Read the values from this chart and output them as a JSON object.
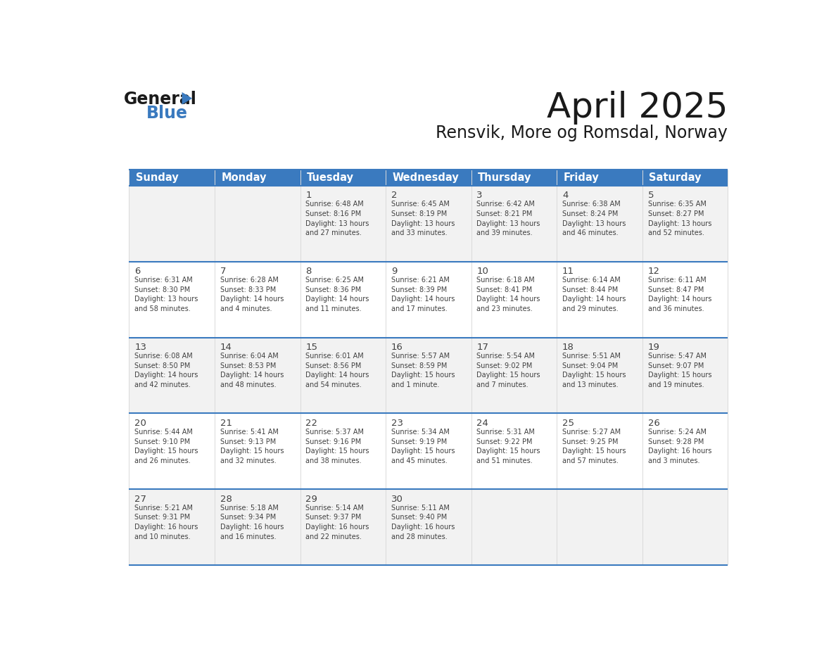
{
  "title": "April 2025",
  "subtitle": "Rensvik, More og Romsdal, Norway",
  "header_bg_color": "#3a7abf",
  "header_text_color": "#ffffff",
  "day_headers": [
    "Sunday",
    "Monday",
    "Tuesday",
    "Wednesday",
    "Thursday",
    "Friday",
    "Saturday"
  ],
  "title_color": "#1a1a1a",
  "subtitle_color": "#1a1a1a",
  "text_color": "#404040",
  "line_color": "#3a7abf",
  "cell_bg_even": "#f2f2f2",
  "cell_bg_odd": "#ffffff",
  "weeks": [
    [
      {
        "day": "",
        "info": ""
      },
      {
        "day": "",
        "info": ""
      },
      {
        "day": "1",
        "info": "Sunrise: 6:48 AM\nSunset: 8:16 PM\nDaylight: 13 hours\nand 27 minutes."
      },
      {
        "day": "2",
        "info": "Sunrise: 6:45 AM\nSunset: 8:19 PM\nDaylight: 13 hours\nand 33 minutes."
      },
      {
        "day": "3",
        "info": "Sunrise: 6:42 AM\nSunset: 8:21 PM\nDaylight: 13 hours\nand 39 minutes."
      },
      {
        "day": "4",
        "info": "Sunrise: 6:38 AM\nSunset: 8:24 PM\nDaylight: 13 hours\nand 46 minutes."
      },
      {
        "day": "5",
        "info": "Sunrise: 6:35 AM\nSunset: 8:27 PM\nDaylight: 13 hours\nand 52 minutes."
      }
    ],
    [
      {
        "day": "6",
        "info": "Sunrise: 6:31 AM\nSunset: 8:30 PM\nDaylight: 13 hours\nand 58 minutes."
      },
      {
        "day": "7",
        "info": "Sunrise: 6:28 AM\nSunset: 8:33 PM\nDaylight: 14 hours\nand 4 minutes."
      },
      {
        "day": "8",
        "info": "Sunrise: 6:25 AM\nSunset: 8:36 PM\nDaylight: 14 hours\nand 11 minutes."
      },
      {
        "day": "9",
        "info": "Sunrise: 6:21 AM\nSunset: 8:39 PM\nDaylight: 14 hours\nand 17 minutes."
      },
      {
        "day": "10",
        "info": "Sunrise: 6:18 AM\nSunset: 8:41 PM\nDaylight: 14 hours\nand 23 minutes."
      },
      {
        "day": "11",
        "info": "Sunrise: 6:14 AM\nSunset: 8:44 PM\nDaylight: 14 hours\nand 29 minutes."
      },
      {
        "day": "12",
        "info": "Sunrise: 6:11 AM\nSunset: 8:47 PM\nDaylight: 14 hours\nand 36 minutes."
      }
    ],
    [
      {
        "day": "13",
        "info": "Sunrise: 6:08 AM\nSunset: 8:50 PM\nDaylight: 14 hours\nand 42 minutes."
      },
      {
        "day": "14",
        "info": "Sunrise: 6:04 AM\nSunset: 8:53 PM\nDaylight: 14 hours\nand 48 minutes."
      },
      {
        "day": "15",
        "info": "Sunrise: 6:01 AM\nSunset: 8:56 PM\nDaylight: 14 hours\nand 54 minutes."
      },
      {
        "day": "16",
        "info": "Sunrise: 5:57 AM\nSunset: 8:59 PM\nDaylight: 15 hours\nand 1 minute."
      },
      {
        "day": "17",
        "info": "Sunrise: 5:54 AM\nSunset: 9:02 PM\nDaylight: 15 hours\nand 7 minutes."
      },
      {
        "day": "18",
        "info": "Sunrise: 5:51 AM\nSunset: 9:04 PM\nDaylight: 15 hours\nand 13 minutes."
      },
      {
        "day": "19",
        "info": "Sunrise: 5:47 AM\nSunset: 9:07 PM\nDaylight: 15 hours\nand 19 minutes."
      }
    ],
    [
      {
        "day": "20",
        "info": "Sunrise: 5:44 AM\nSunset: 9:10 PM\nDaylight: 15 hours\nand 26 minutes."
      },
      {
        "day": "21",
        "info": "Sunrise: 5:41 AM\nSunset: 9:13 PM\nDaylight: 15 hours\nand 32 minutes."
      },
      {
        "day": "22",
        "info": "Sunrise: 5:37 AM\nSunset: 9:16 PM\nDaylight: 15 hours\nand 38 minutes."
      },
      {
        "day": "23",
        "info": "Sunrise: 5:34 AM\nSunset: 9:19 PM\nDaylight: 15 hours\nand 45 minutes."
      },
      {
        "day": "24",
        "info": "Sunrise: 5:31 AM\nSunset: 9:22 PM\nDaylight: 15 hours\nand 51 minutes."
      },
      {
        "day": "25",
        "info": "Sunrise: 5:27 AM\nSunset: 9:25 PM\nDaylight: 15 hours\nand 57 minutes."
      },
      {
        "day": "26",
        "info": "Sunrise: 5:24 AM\nSunset: 9:28 PM\nDaylight: 16 hours\nand 3 minutes."
      }
    ],
    [
      {
        "day": "27",
        "info": "Sunrise: 5:21 AM\nSunset: 9:31 PM\nDaylight: 16 hours\nand 10 minutes."
      },
      {
        "day": "28",
        "info": "Sunrise: 5:18 AM\nSunset: 9:34 PM\nDaylight: 16 hours\nand 16 minutes."
      },
      {
        "day": "29",
        "info": "Sunrise: 5:14 AM\nSunset: 9:37 PM\nDaylight: 16 hours\nand 22 minutes."
      },
      {
        "day": "30",
        "info": "Sunrise: 5:11 AM\nSunset: 9:40 PM\nDaylight: 16 hours\nand 28 minutes."
      },
      {
        "day": "",
        "info": ""
      },
      {
        "day": "",
        "info": ""
      },
      {
        "day": "",
        "info": ""
      }
    ]
  ],
  "logo_text_general": "General",
  "logo_text_blue": "Blue",
  "logo_color_general": "#1a1a1a",
  "logo_color_blue": "#3a7abf",
  "logo_triangle_color": "#3a7abf"
}
